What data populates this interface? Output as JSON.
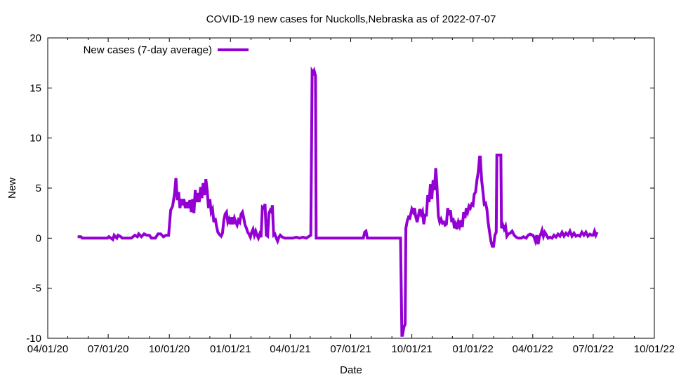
{
  "chart_data": {
    "type": "line",
    "title": "COVID-19 new cases for Nuckolls,Nebraska as of 2022-07-07",
    "xlabel": "Date",
    "ylabel": "New",
    "xlim": [
      "2020-04-01",
      "2022-10-01"
    ],
    "ylim": [
      -10,
      20
    ],
    "x_ticks": [
      {
        "date": "2020-04-01",
        "label": "04/01/20"
      },
      {
        "date": "2020-07-01",
        "label": "07/01/20"
      },
      {
        "date": "2020-10-01",
        "label": "10/01/20"
      },
      {
        "date": "2021-01-01",
        "label": "01/01/21"
      },
      {
        "date": "2021-04-01",
        "label": "04/01/21"
      },
      {
        "date": "2021-07-01",
        "label": "07/01/21"
      },
      {
        "date": "2021-10-01",
        "label": "10/01/21"
      },
      {
        "date": "2022-01-01",
        "label": "01/01/22"
      },
      {
        "date": "2022-04-01",
        "label": "04/01/22"
      },
      {
        "date": "2022-07-01",
        "label": "07/01/22"
      },
      {
        "date": "2022-10-01",
        "label": "10/01/22"
      }
    ],
    "y_ticks": [
      -10,
      -5,
      0,
      5,
      10,
      15,
      20
    ],
    "grid": false,
    "legend": "top-left",
    "series": [
      {
        "name": "New cases (7-day average)",
        "color": "#9400d3",
        "points": [
          [
            "2020-05-16",
            0.14
          ],
          [
            "2020-05-21",
            0.14
          ],
          [
            "2020-05-23",
            0.0
          ],
          [
            "2020-06-10",
            0.0
          ],
          [
            "2020-06-20",
            0.0
          ],
          [
            "2020-06-30",
            0.0
          ],
          [
            "2020-07-02",
            0.14
          ],
          [
            "2020-07-05",
            0.0
          ],
          [
            "2020-07-08",
            -0.14
          ],
          [
            "2020-07-10",
            0.29
          ],
          [
            "2020-07-12",
            0.14
          ],
          [
            "2020-07-14",
            0.0
          ],
          [
            "2020-07-16",
            0.29
          ],
          [
            "2020-07-20",
            0.14
          ],
          [
            "2020-07-22",
            0.0
          ],
          [
            "2020-08-05",
            0.0
          ],
          [
            "2020-08-10",
            0.29
          ],
          [
            "2020-08-14",
            0.14
          ],
          [
            "2020-08-16",
            0.43
          ],
          [
            "2020-08-20",
            0.14
          ],
          [
            "2020-08-24",
            0.43
          ],
          [
            "2020-08-28",
            0.29
          ],
          [
            "2020-09-01",
            0.29
          ],
          [
            "2020-09-04",
            0.0
          ],
          [
            "2020-09-10",
            0.0
          ],
          [
            "2020-09-14",
            0.43
          ],
          [
            "2020-09-18",
            0.43
          ],
          [
            "2020-09-22",
            0.14
          ],
          [
            "2020-09-26",
            0.29
          ],
          [
            "2020-09-30",
            0.29
          ],
          [
            "2020-10-03",
            2.8
          ],
          [
            "2020-10-06",
            3.2
          ],
          [
            "2020-10-09",
            4.5
          ],
          [
            "2020-10-11",
            6.0
          ],
          [
            "2020-10-13",
            3.8
          ],
          [
            "2020-10-15",
            4.6
          ],
          [
            "2020-10-17",
            3.0
          ],
          [
            "2020-10-19",
            3.9
          ],
          [
            "2020-10-21",
            3.3
          ],
          [
            "2020-10-23",
            3.9
          ],
          [
            "2020-10-25",
            3.0
          ],
          [
            "2020-10-27",
            3.6
          ],
          [
            "2020-10-29",
            3.0
          ],
          [
            "2020-11-01",
            3.8
          ],
          [
            "2020-11-03",
            2.6
          ],
          [
            "2020-11-05",
            3.9
          ],
          [
            "2020-11-07",
            2.5
          ],
          [
            "2020-11-09",
            4.8
          ],
          [
            "2020-11-11",
            3.6
          ],
          [
            "2020-11-13",
            4.5
          ],
          [
            "2020-11-15",
            3.6
          ],
          [
            "2020-11-17",
            5.1
          ],
          [
            "2020-11-19",
            4.0
          ],
          [
            "2020-11-21",
            5.5
          ],
          [
            "2020-11-23",
            4.3
          ],
          [
            "2020-11-25",
            5.9
          ],
          [
            "2020-11-27",
            4.8
          ],
          [
            "2020-11-29",
            3.0
          ],
          [
            "2020-12-01",
            3.9
          ],
          [
            "2020-12-03",
            2.6
          ],
          [
            "2020-12-05",
            2.9
          ],
          [
            "2020-12-07",
            1.6
          ],
          [
            "2020-12-09",
            2.0
          ],
          [
            "2020-12-11",
            1.2
          ],
          [
            "2020-12-13",
            0.6
          ],
          [
            "2020-12-15",
            0.4
          ],
          [
            "2020-12-18",
            0.2
          ],
          [
            "2020-12-20",
            0.5
          ],
          [
            "2020-12-22",
            1.8
          ],
          [
            "2020-12-24",
            2.4
          ],
          [
            "2020-12-26",
            2.6
          ],
          [
            "2020-12-28",
            1.6
          ],
          [
            "2020-12-30",
            1.9
          ],
          [
            "2021-01-01",
            1.4
          ],
          [
            "2021-01-03",
            2.1
          ],
          [
            "2021-01-05",
            1.4
          ],
          [
            "2021-01-07",
            2.0
          ],
          [
            "2021-01-09",
            1.6
          ],
          [
            "2021-01-11",
            1.3
          ],
          [
            "2021-01-13",
            1.8
          ],
          [
            "2021-01-15",
            1.6
          ],
          [
            "2021-01-17",
            2.4
          ],
          [
            "2021-01-19",
            2.6
          ],
          [
            "2021-01-21",
            2.0
          ],
          [
            "2021-01-23",
            1.3
          ],
          [
            "2021-01-25",
            1.0
          ],
          [
            "2021-01-27",
            0.6
          ],
          [
            "2021-01-29",
            0.4
          ],
          [
            "2021-01-31",
            0.1
          ],
          [
            "2021-02-02",
            0.6
          ],
          [
            "2021-02-04",
            0.9
          ],
          [
            "2021-02-06",
            0.3
          ],
          [
            "2021-02-08",
            0.7
          ],
          [
            "2021-02-10",
            0.3
          ],
          [
            "2021-02-12",
            0.0
          ],
          [
            "2021-02-14",
            0.4
          ],
          [
            "2021-02-16",
            0.1
          ],
          [
            "2021-02-18",
            3.1
          ],
          [
            "2021-02-20",
            3.0
          ],
          [
            "2021-02-22",
            3.4
          ],
          [
            "2021-02-24",
            0.3
          ],
          [
            "2021-02-26",
            0.2
          ],
          [
            "2021-02-28",
            2.5
          ],
          [
            "2021-03-02",
            2.8
          ],
          [
            "2021-03-04",
            2.6
          ],
          [
            "2021-03-05",
            3.3
          ],
          [
            "2021-03-07",
            0.3
          ],
          [
            "2021-03-09",
            0.4
          ],
          [
            "2021-03-11",
            0.0
          ],
          [
            "2021-03-13",
            -0.3
          ],
          [
            "2021-03-15",
            0.1
          ],
          [
            "2021-03-17",
            0.3
          ],
          [
            "2021-03-20",
            0.1
          ],
          [
            "2021-03-24",
            0.0
          ],
          [
            "2021-04-05",
            0.0
          ],
          [
            "2021-04-10",
            0.1
          ],
          [
            "2021-04-15",
            0.0
          ],
          [
            "2021-04-20",
            0.1
          ],
          [
            "2021-04-25",
            0.0
          ],
          [
            "2021-05-02",
            0.3
          ],
          [
            "2021-05-04",
            16.7
          ],
          [
            "2021-05-06",
            16.5
          ],
          [
            "2021-05-07",
            16.7
          ],
          [
            "2021-05-09",
            16.2
          ],
          [
            "2021-05-10",
            0.0
          ],
          [
            "2021-06-15",
            0.0
          ],
          [
            "2021-07-20",
            0.0
          ],
          [
            "2021-07-22",
            0.6
          ],
          [
            "2021-07-24",
            0.7
          ],
          [
            "2021-07-26",
            0.0
          ],
          [
            "2021-08-10",
            0.0
          ],
          [
            "2021-09-01",
            0.0
          ],
          [
            "2021-09-14",
            0.0
          ],
          [
            "2021-09-16",
            -9.7
          ],
          [
            "2021-09-17",
            -9.7
          ],
          [
            "2021-09-19",
            -8.9
          ],
          [
            "2021-09-21",
            -8.6
          ],
          [
            "2021-09-22",
            1.0
          ],
          [
            "2021-09-24",
            1.7
          ],
          [
            "2021-09-26",
            2.1
          ],
          [
            "2021-09-28",
            2.0
          ],
          [
            "2021-10-01",
            2.9
          ],
          [
            "2021-10-03",
            2.6
          ],
          [
            "2021-10-05",
            3.0
          ],
          [
            "2021-10-07",
            2.1
          ],
          [
            "2021-10-09",
            1.6
          ],
          [
            "2021-10-11",
            2.3
          ],
          [
            "2021-10-13",
            2.9
          ],
          [
            "2021-10-15",
            2.4
          ],
          [
            "2021-10-17",
            2.7
          ],
          [
            "2021-10-19",
            1.4
          ],
          [
            "2021-10-21",
            2.3
          ],
          [
            "2021-10-23",
            2.3
          ],
          [
            "2021-10-25",
            4.3
          ],
          [
            "2021-10-27",
            3.6
          ],
          [
            "2021-10-29",
            5.4
          ],
          [
            "2021-10-31",
            3.9
          ],
          [
            "2021-11-02",
            5.8
          ],
          [
            "2021-11-04",
            4.8
          ],
          [
            "2021-11-06",
            7.0
          ],
          [
            "2021-11-08",
            5.0
          ],
          [
            "2021-11-10",
            2.2
          ],
          [
            "2021-11-12",
            1.6
          ],
          [
            "2021-11-14",
            1.9
          ],
          [
            "2021-11-16",
            1.5
          ],
          [
            "2021-11-18",
            1.6
          ],
          [
            "2021-11-20",
            1.3
          ],
          [
            "2021-11-22",
            1.4
          ],
          [
            "2021-11-24",
            3.0
          ],
          [
            "2021-11-26",
            2.3
          ],
          [
            "2021-11-28",
            2.8
          ],
          [
            "2021-11-30",
            1.6
          ],
          [
            "2021-12-02",
            2.0
          ],
          [
            "2021-12-04",
            1.0
          ],
          [
            "2021-12-06",
            1.4
          ],
          [
            "2021-12-08",
            0.9
          ],
          [
            "2021-12-10",
            1.6
          ],
          [
            "2021-12-12",
            1.2
          ],
          [
            "2021-12-14",
            1.8
          ],
          [
            "2021-12-16",
            1.1
          ],
          [
            "2021-12-18",
            2.6
          ],
          [
            "2021-12-20",
            2.0
          ],
          [
            "2021-12-22",
            3.0
          ],
          [
            "2021-12-24",
            2.6
          ],
          [
            "2021-12-26",
            3.2
          ],
          [
            "2021-12-28",
            3.0
          ],
          [
            "2021-12-30",
            3.4
          ],
          [
            "2022-01-01",
            3.3
          ],
          [
            "2022-01-03",
            4.4
          ],
          [
            "2022-01-05",
            4.6
          ],
          [
            "2022-01-07",
            5.8
          ],
          [
            "2022-01-09",
            6.6
          ],
          [
            "2022-01-11",
            8.1
          ],
          [
            "2022-01-12",
            8.1
          ],
          [
            "2022-01-14",
            5.8
          ],
          [
            "2022-01-16",
            4.7
          ],
          [
            "2022-01-18",
            3.4
          ],
          [
            "2022-01-20",
            3.5
          ],
          [
            "2022-01-22",
            2.9
          ],
          [
            "2022-01-24",
            1.5
          ],
          [
            "2022-01-26",
            0.6
          ],
          [
            "2022-01-28",
            -0.3
          ],
          [
            "2022-01-30",
            -0.8
          ],
          [
            "2022-02-01",
            -0.8
          ],
          [
            "2022-02-03",
            0.3
          ],
          [
            "2022-02-05",
            0.6
          ],
          [
            "2022-02-06",
            8.3
          ],
          [
            "2022-02-12",
            8.3
          ],
          [
            "2022-02-13",
            1.0
          ],
          [
            "2022-02-15",
            1.3
          ],
          [
            "2022-02-17",
            0.9
          ],
          [
            "2022-02-19",
            1.2
          ],
          [
            "2022-02-21",
            0.2
          ],
          [
            "2022-02-23",
            0.4
          ],
          [
            "2022-02-26",
            0.5
          ],
          [
            "2022-03-01",
            0.7
          ],
          [
            "2022-03-04",
            0.3
          ],
          [
            "2022-03-07",
            0.1
          ],
          [
            "2022-03-10",
            0.0
          ],
          [
            "2022-03-15",
            0.0
          ],
          [
            "2022-03-18",
            0.14
          ],
          [
            "2022-03-22",
            0.0
          ],
          [
            "2022-03-25",
            0.3
          ],
          [
            "2022-03-28",
            0.4
          ],
          [
            "2022-04-01",
            0.3
          ],
          [
            "2022-04-03",
            0.1
          ],
          [
            "2022-04-05",
            -0.3
          ],
          [
            "2022-04-07",
            0.3
          ],
          [
            "2022-04-09",
            -0.6
          ],
          [
            "2022-04-11",
            0.1
          ],
          [
            "2022-04-13",
            0.4
          ],
          [
            "2022-04-15",
            0.8
          ],
          [
            "2022-04-17",
            0.2
          ],
          [
            "2022-04-19",
            0.6
          ],
          [
            "2022-04-21",
            0.4
          ],
          [
            "2022-04-24",
            0.0
          ],
          [
            "2022-04-27",
            0.1
          ],
          [
            "2022-04-30",
            0.0
          ],
          [
            "2022-05-03",
            0.3
          ],
          [
            "2022-05-06",
            0.1
          ],
          [
            "2022-05-09",
            0.4
          ],
          [
            "2022-05-12",
            0.2
          ],
          [
            "2022-05-15",
            0.6
          ],
          [
            "2022-05-18",
            0.2
          ],
          [
            "2022-05-21",
            0.5
          ],
          [
            "2022-05-24",
            0.3
          ],
          [
            "2022-05-27",
            0.7
          ],
          [
            "2022-05-30",
            0.2
          ],
          [
            "2022-06-02",
            0.5
          ],
          [
            "2022-06-05",
            0.2
          ],
          [
            "2022-06-08",
            0.3
          ],
          [
            "2022-06-11",
            0.2
          ],
          [
            "2022-06-14",
            0.6
          ],
          [
            "2022-06-17",
            0.3
          ],
          [
            "2022-06-20",
            0.6
          ],
          [
            "2022-06-23",
            0.2
          ],
          [
            "2022-06-26",
            0.4
          ],
          [
            "2022-06-29",
            0.3
          ],
          [
            "2022-07-01",
            0.3
          ],
          [
            "2022-07-03",
            0.7
          ],
          [
            "2022-07-05",
            0.3
          ],
          [
            "2022-07-07",
            0.6
          ]
        ]
      }
    ]
  }
}
